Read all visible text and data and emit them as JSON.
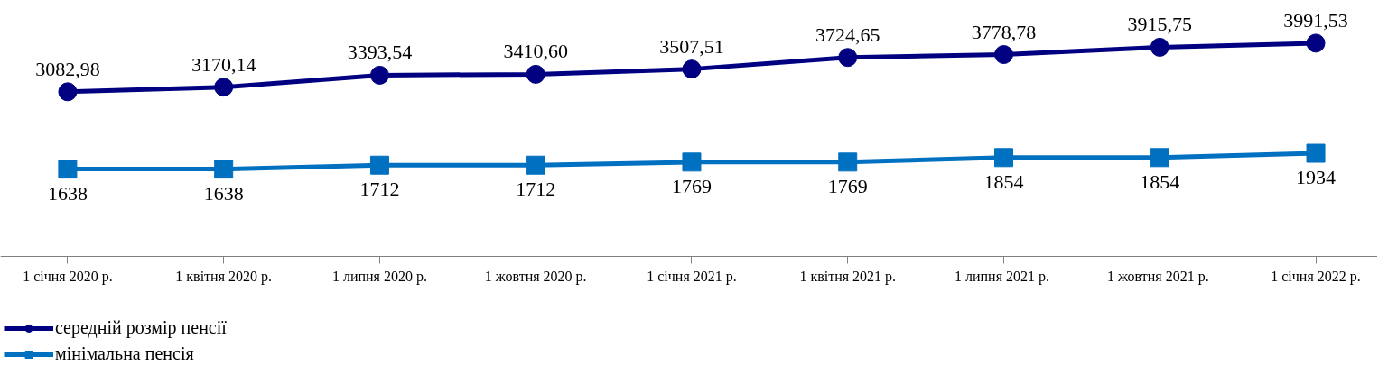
{
  "chart_data": {
    "type": "line",
    "categories": [
      "1 січня 2020 р.",
      "1 квітня 2020 р.",
      "1 липня 2020 р.",
      "1 жовтня 2020 р.",
      "1 січня 2021 р.",
      "1 квітня 2021 р.",
      "1 липня  2021 р.",
      "1 жовтня  2021 р.",
      "1 січня 2022 р."
    ],
    "series": [
      {
        "name": "середній розмір пенсії",
        "color": "#000080",
        "marker": "circle",
        "values": [
          3082.98,
          3170.14,
          3393.54,
          3410.6,
          3507.51,
          3724.65,
          3778.78,
          3915.75,
          3991.53
        ],
        "value_labels": [
          "3082,98",
          "3170,14",
          "3393,54",
          "3410,60",
          "3507,51",
          "3724,65",
          "3778,78",
          "3915,75",
          "3991,53"
        ]
      },
      {
        "name": "мінімальна пенсія",
        "color": "#0070c0",
        "marker": "square",
        "values": [
          1638,
          1638,
          1712,
          1712,
          1769,
          1769,
          1854,
          1854,
          1934
        ],
        "value_labels": [
          "1638",
          "1638",
          "1712",
          "1712",
          "1769",
          "1769",
          "1854",
          "1854",
          "1934"
        ]
      }
    ],
    "legend": "bottom left",
    "line_style": "solid"
  }
}
